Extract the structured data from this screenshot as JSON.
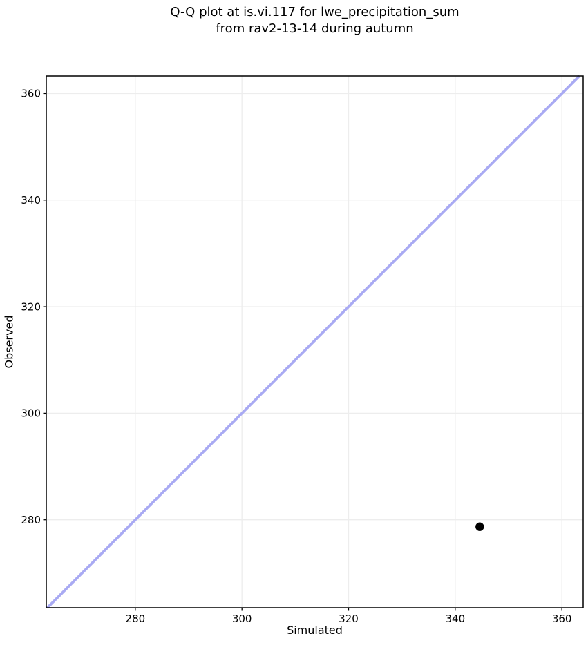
{
  "figure": {
    "title": "Q-Q plot at is.vi.117 for lwe_precipitation_sum\nfrom rav2-13-14 during autumn"
  },
  "chart_data": {
    "type": "scatter",
    "title": "Q-Q plot at is.vi.117 for lwe_precipitation_sum from rav2-13-14 during autumn",
    "xlabel": "Simulated",
    "ylabel": "Observed",
    "xlim": [
      263.3,
      364.0
    ],
    "ylim": [
      263.5,
      363.3
    ],
    "xticks": [
      280,
      300,
      320,
      340,
      360
    ],
    "yticks": [
      280,
      300,
      320,
      340,
      360
    ],
    "grid": true,
    "legend": false,
    "points": [
      {
        "x": 344.6,
        "y": 278.7
      }
    ],
    "identity_line": {
      "from": 263.5,
      "to": 363.3,
      "color": "#a9aaf3",
      "width": 3.8
    },
    "marker": {
      "radius": 6.2,
      "color": "#000000"
    },
    "colors": {
      "grid": "#ededed",
      "spine": "#000000",
      "tick_text": "#000000",
      "background": "#ffffff"
    }
  }
}
